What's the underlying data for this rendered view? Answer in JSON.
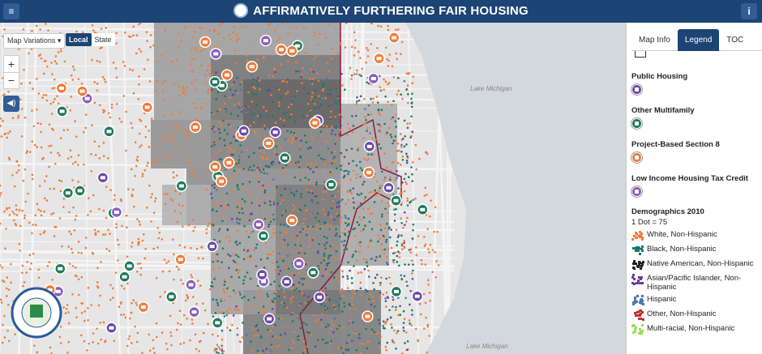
{
  "header": {
    "title": "AFFIRMATIVELY FURTHERING FAIR HOUSING"
  },
  "map_controls": {
    "variations": "Map Variations",
    "scale_options": [
      "Local",
      "State"
    ],
    "active_scale": "Local",
    "zoom": [
      "+",
      "−"
    ]
  },
  "map_labels": [
    "Lake Michigan",
    "Lake Michigan"
  ],
  "panel": {
    "tabs": [
      "Map Info",
      "Legend",
      "TOC"
    ],
    "active_tab": "Legend",
    "layers": [
      {
        "label": "Public Housing",
        "color": "#6a4aa8"
      },
      {
        "label": "Other Multifamily",
        "color": "#1f7a5a"
      },
      {
        "label": "Project-Based Section 8",
        "color": "#f07c3a"
      },
      {
        "label": "Low Income Housing Tax Credit",
        "color": "#8a5cc0"
      }
    ],
    "demographics": {
      "title": "Demographics 2010",
      "note": "1 Dot = 75",
      "items": [
        {
          "label": "White, Non-Hispanic",
          "color": "#f07c3a"
        },
        {
          "label": "Black, Non-Hispanic",
          "color": "#1a7a6a"
        },
        {
          "label": "Native American, Non-Hispanic",
          "color": "#222222"
        },
        {
          "label": "Asian/Pacific Islander, Non-Hispanic",
          "color": "#6a3fa0"
        },
        {
          "label": "Hispanic",
          "color": "#4a78b0"
        },
        {
          "label": "Other, Non-Hispanic",
          "color": "#c0302a"
        },
        {
          "label": "Multi-racial, Non-Hispanic",
          "color": "#9be05a"
        }
      ]
    }
  }
}
